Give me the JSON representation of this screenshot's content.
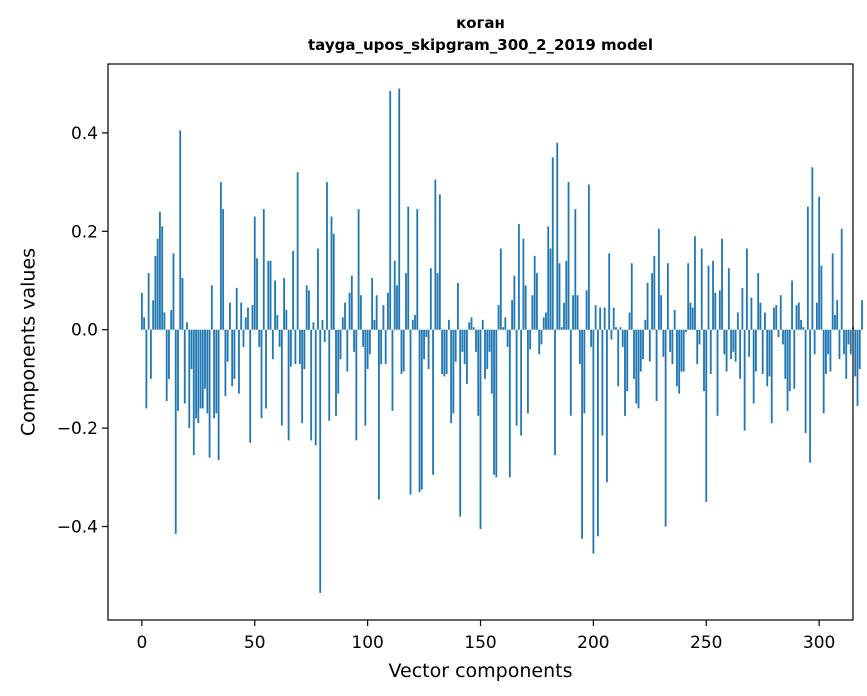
{
  "chart_data": {
    "type": "bar",
    "title": "коган",
    "subtitle": "tayga_upos_skipgram_300_2_2019 model",
    "xlabel": "Vector components",
    "ylabel": "Components values",
    "xlim": [
      -15,
      315
    ],
    "ylim": [
      -0.59,
      0.54
    ],
    "xticks": [
      0,
      50,
      100,
      150,
      200,
      250,
      300
    ],
    "yticks": [
      -0.4,
      -0.2,
      0.0,
      0.2,
      0.4
    ],
    "ytick_labels": [
      "−0.4",
      "−0.2",
      "0.0",
      "0.2",
      "0.4"
    ],
    "grid": false,
    "color": "#1f77b4",
    "x_start": 0,
    "values": [
      0.075,
      0.025,
      -0.16,
      0.115,
      -0.1,
      0.06,
      0.15,
      0.185,
      0.24,
      0.21,
      0.035,
      -0.145,
      -0.1,
      0.04,
      0.155,
      -0.415,
      -0.165,
      0.405,
      0.105,
      -0.15,
      0.015,
      -0.2,
      -0.08,
      -0.255,
      -0.18,
      -0.19,
      -0.16,
      -0.16,
      -0.12,
      -0.17,
      -0.26,
      0.09,
      -0.18,
      -0.17,
      -0.265,
      0.3,
      0.245,
      -0.135,
      -0.065,
      0.055,
      -0.115,
      -0.1,
      0.085,
      -0.13,
      0.055,
      -0.035,
      0.025,
      0.045,
      -0.23,
      0.05,
      0.23,
      0.145,
      -0.035,
      -0.18,
      0.245,
      -0.16,
      0.14,
      0.14,
      -0.06,
      0.1,
      0.03,
      -0.035,
      -0.195,
      0.105,
      0.04,
      -0.225,
      -0.075,
      0.16,
      -0.07,
      0.32,
      -0.07,
      -0.19,
      -0.08,
      0.09,
      0.08,
      -0.225,
      0.015,
      -0.235,
      0.165,
      -0.535,
      0.02,
      -0.025,
      0.3,
      -0.185,
      0.23,
      0.195,
      -0.175,
      -0.13,
      -0.06,
      0.025,
      0.055,
      -0.085,
      0.075,
      0.11,
      -0.045,
      -0.225,
      0.245,
      0.07,
      -0.035,
      -0.195,
      -0.08,
      -0.05,
      0.105,
      0.02,
      0.07,
      -0.345,
      -0.07,
      0.05,
      -0.07,
      0.075,
      0.485,
      -0.165,
      0.14,
      0.09,
      0.49,
      -0.09,
      -0.085,
      0.115,
      0.25,
      -0.335,
      0.02,
      0.03,
      0.245,
      -0.33,
      -0.325,
      -0.06,
      -0.015,
      -0.08,
      0.125,
      -0.295,
      0.305,
      0.115,
      0.275,
      -0.09,
      -0.095,
      -0.09,
      0.02,
      -0.19,
      -0.17,
      -0.065,
      0.095,
      -0.38,
      -0.045,
      -0.07,
      -0.11,
      0.015,
      0.025,
      0.005,
      -0.045,
      -0.175,
      -0.405,
      0.02,
      -0.1,
      -0.08,
      -0.045,
      -0.13,
      -0.295,
      -0.3,
      0.05,
      0.165,
      0.005,
      0.025,
      -0.035,
      -0.3,
      0.06,
      0.11,
      -0.195,
      0.215,
      -0.215,
      0.185,
      0.09,
      -0.17,
      -0.04,
      0.07,
      0.15,
      0.115,
      -0.05,
      -0.03,
      0.025,
      0.035,
      0.21,
      0.165,
      0.35,
      -0.255,
      0.38,
      0.135,
      0.005,
      0.055,
      0.14,
      0.3,
      -0.175,
      0.07,
      0.245,
      0.07,
      -0.07,
      -0.425,
      -0.17,
      0.08,
      0.295,
      -0.035,
      -0.455,
      0.05,
      -0.42,
      0.045,
      -0.215,
      0.045,
      -0.31,
      0.155,
      -0.02,
      0.045,
      0.005,
      -0.115,
      0.005,
      -0.035,
      -0.175,
      -0.125,
      0.035,
      0.135,
      -0.1,
      -0.15,
      -0.16,
      -0.085,
      -0.06,
      0.02,
      0.095,
      -0.065,
      0.115,
      0.15,
      -0.145,
      0.205,
      0.07,
      -0.055,
      -0.4,
      0.135,
      -0.045,
      -0.07,
      0.04,
      -0.115,
      -0.13,
      -0.085,
      -0.085,
      -0.005,
      0.135,
      0.055,
      0.045,
      0.19,
      -0.07,
      -0.03,
      0.165,
      -0.125,
      -0.35,
      0.13,
      -0.09,
      0.14,
      0.075,
      -0.175,
      0.08,
      0.185,
      -0.05,
      -0.085,
      0.125,
      -0.06,
      -0.045,
      -0.065,
      0.035,
      -0.1,
      0.085,
      -0.205,
      0.165,
      -0.055,
      0.065,
      -0.15,
      -0.085,
      0.115,
      0.055,
      -0.09,
      0.035,
      -0.115,
      -0.095,
      -0.19,
      0.045,
      0.05,
      -0.015,
      0.07,
      -0.03,
      -0.1,
      -0.165,
      -0.125,
      0.1,
      -0.12,
      0.05,
      0.055,
      0.02,
      0.005,
      -0.21,
      0.25,
      -0.27,
      0.33,
      -0.05,
      0.055,
      0.27,
      0.13,
      -0.17,
      -0.09,
      -0.05,
      -0.085,
      0.155,
      0.03,
      0.06,
      -0.06,
      0.205,
      -0.05,
      -0.1,
      -0.03,
      -0.05,
      0.005,
      -0.095,
      -0.155,
      -0.08,
      0.06
    ]
  }
}
